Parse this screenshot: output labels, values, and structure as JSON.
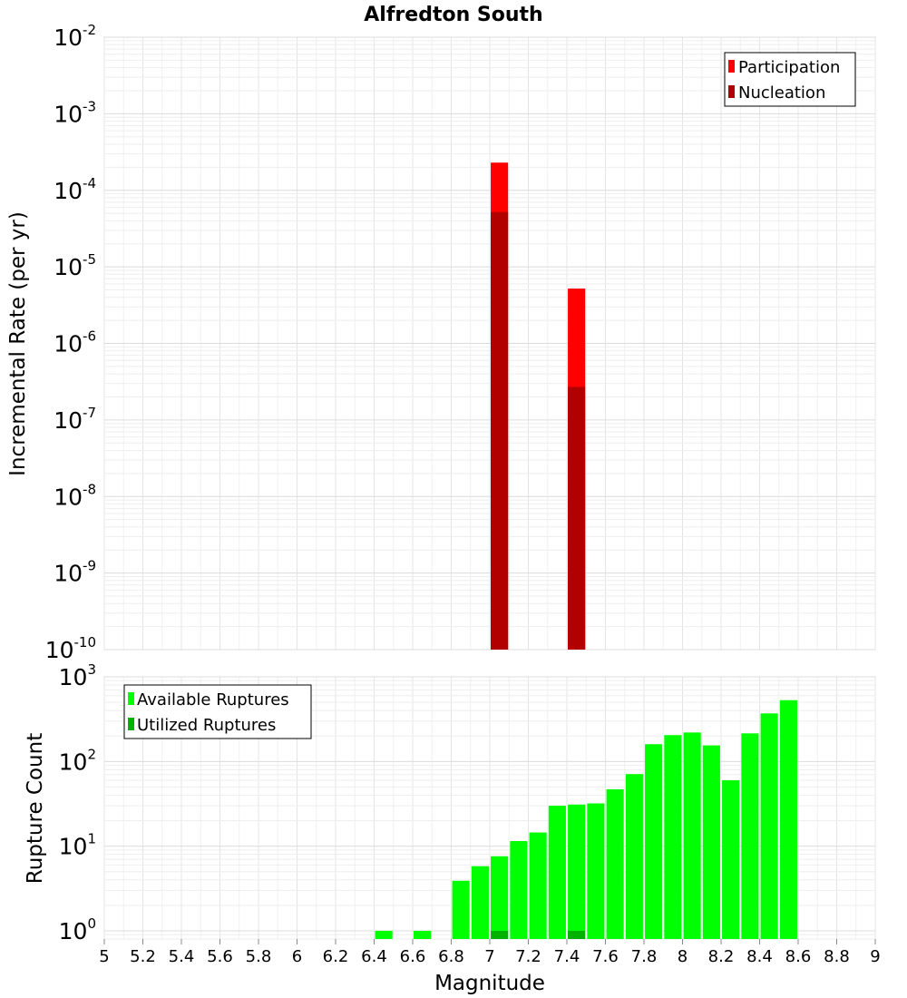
{
  "title": "Alfredton South",
  "xlabel": "Magnitude",
  "x_ticks": [
    "5",
    "5.2",
    "5.4",
    "5.6",
    "5.8",
    "6",
    "6.2",
    "6.4",
    "6.6",
    "6.8",
    "7",
    "7.2",
    "7.4",
    "7.6",
    "7.8",
    "8",
    "8.2",
    "8.4",
    "8.6",
    "8.8",
    "9"
  ],
  "chart_data": [
    {
      "type": "bar",
      "ylabel": "Incremental Rate (per yr)",
      "yscale": "log",
      "xlim": [
        5,
        9
      ],
      "ylim": [
        1e-10,
        0.01
      ],
      "y_ticks": [
        {
          "base": "10",
          "exp": "-2"
        },
        {
          "base": "10",
          "exp": "-3"
        },
        {
          "base": "10",
          "exp": "-4"
        },
        {
          "base": "10",
          "exp": "-5"
        },
        {
          "base": "10",
          "exp": "-6"
        },
        {
          "base": "10",
          "exp": "-7"
        },
        {
          "base": "10",
          "exp": "-8"
        },
        {
          "base": "10",
          "exp": "-9"
        },
        {
          "base": "10",
          "exp": "-10"
        }
      ],
      "legend_position": "top-right",
      "bar_width": 0.09,
      "series": [
        {
          "name": "Participation",
          "color": "#ff0000",
          "x": [
            7.05,
            7.45
          ],
          "values": [
            0.00023,
            5.2e-06
          ]
        },
        {
          "name": "Nucleation",
          "color": "#b20000",
          "x": [
            7.05,
            7.45
          ],
          "values": [
            5.2e-05,
            2.7e-07
          ]
        }
      ]
    },
    {
      "type": "bar",
      "ylabel": "Rupture Count",
      "yscale": "log",
      "xlim": [
        5,
        9
      ],
      "ylim": [
        0.8,
        1000
      ],
      "y_ticks": [
        {
          "base": "10",
          "exp": "0"
        },
        {
          "base": "10",
          "exp": "1"
        },
        {
          "base": "10",
          "exp": "2"
        },
        {
          "base": "10",
          "exp": "3"
        }
      ],
      "legend_position": "top-left",
      "bar_width": 0.09,
      "series": [
        {
          "name": "Available Ruptures",
          "color": "#00ff00",
          "x": [
            6.45,
            6.65,
            6.85,
            6.95,
            7.05,
            7.15,
            7.25,
            7.35,
            7.45,
            7.55,
            7.65,
            7.75,
            7.85,
            7.95,
            8.05,
            8.15,
            8.25,
            8.35,
            8.45,
            8.55
          ],
          "values": [
            1,
            1,
            3.9,
            5.8,
            7.6,
            11.5,
            14.5,
            30,
            31,
            32,
            47,
            71,
            160,
            205,
            220,
            155,
            60,
            215,
            370,
            530
          ]
        },
        {
          "name": "Utilized Ruptures",
          "color": "#00b200",
          "x": [
            7.05,
            7.45
          ],
          "values": [
            1,
            1
          ]
        }
      ]
    }
  ]
}
